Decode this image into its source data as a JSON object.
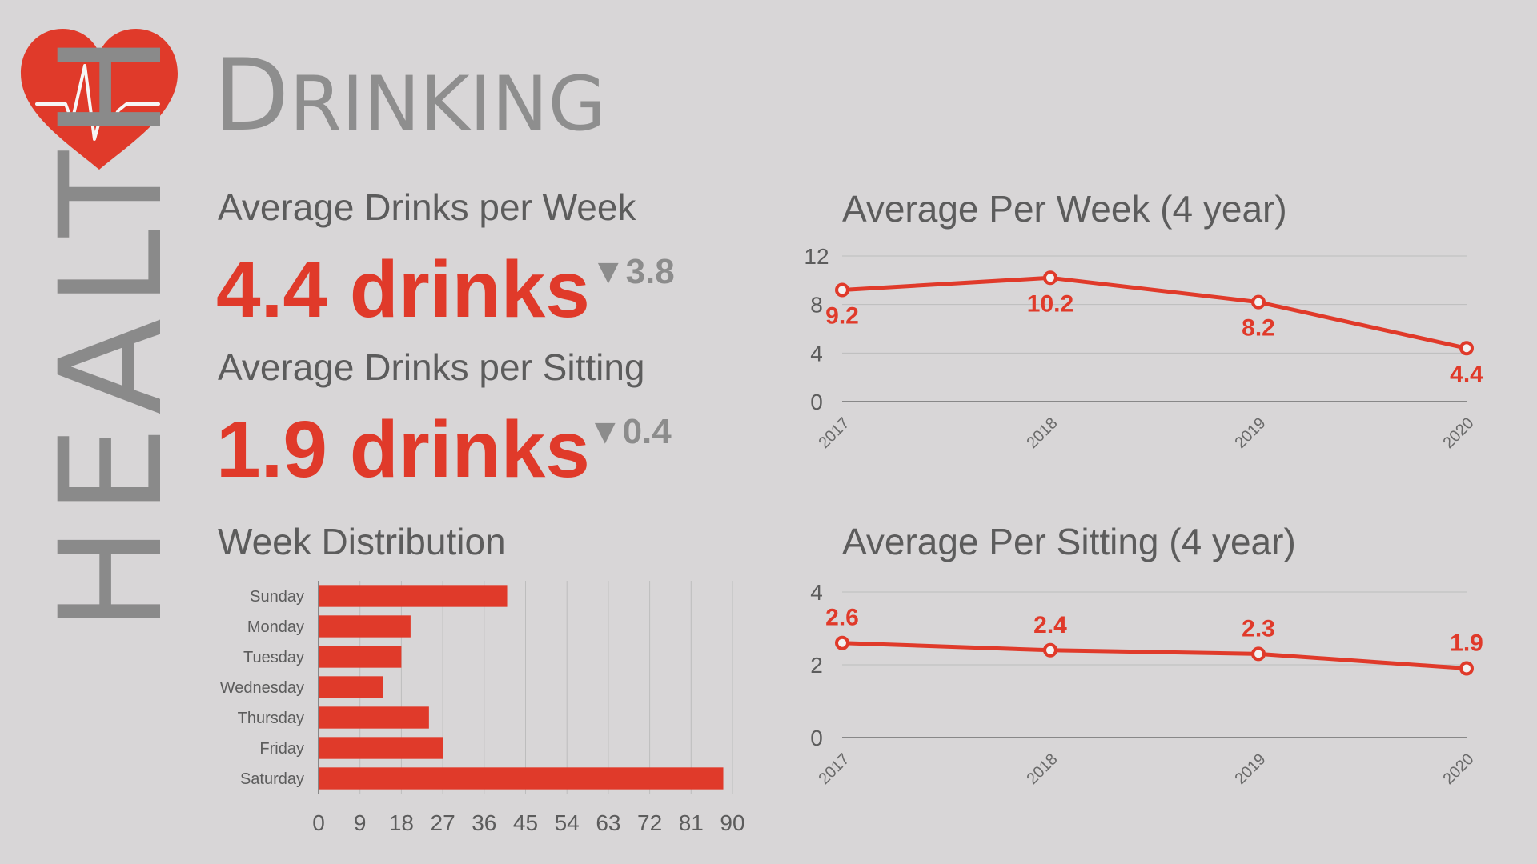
{
  "header": {
    "section_label": "Health",
    "section_label_display": "HEALTH",
    "title_initial": "D",
    "title_rest": "RINKING"
  },
  "colors": {
    "accent": "#e03a2a",
    "muted": "#8c8c8c",
    "background": "#d8d6d7"
  },
  "icons": {
    "heart": "heart-pulse-icon",
    "delta": "triangle-down-icon"
  },
  "metrics": {
    "per_week": {
      "label": "Average Drinks per Week",
      "value": "4.4 drinks",
      "delta_symbol": "▼",
      "delta": "3.8"
    },
    "per_sitting": {
      "label": "Average Drinks per Sitting",
      "value": "1.9 drinks",
      "delta_symbol": "▼",
      "delta": "0.4"
    }
  },
  "chart_data": [
    {
      "id": "week_distribution",
      "type": "bar",
      "orientation": "horizontal",
      "title": "Week Distribution",
      "categories": [
        "Sunday",
        "Monday",
        "Tuesday",
        "Wednesday",
        "Thursday",
        "Friday",
        "Saturday"
      ],
      "values": [
        41,
        20,
        18,
        14,
        24,
        27,
        88
      ],
      "xlim": [
        0,
        90
      ],
      "xticks": [
        0,
        9,
        18,
        27,
        36,
        45,
        54,
        63,
        72,
        81,
        90
      ],
      "grid": true
    },
    {
      "id": "avg_per_week",
      "type": "line",
      "title": "Average Per Week (4 year)",
      "x": [
        "2017",
        "2018",
        "2019",
        "2020"
      ],
      "values": [
        9.2,
        10.2,
        8.2,
        4.4
      ],
      "data_labels": [
        "9.2",
        "10.2",
        "8.2",
        "4.4"
      ],
      "ylim": [
        0,
        12
      ],
      "yticks": [
        0,
        4,
        8,
        12
      ],
      "grid": true
    },
    {
      "id": "avg_per_sitting",
      "type": "line",
      "title": "Average Per Sitting (4 year)",
      "x": [
        "2017",
        "2018",
        "2019",
        "2020"
      ],
      "values": [
        2.6,
        2.4,
        2.3,
        1.9
      ],
      "data_labels": [
        "2.6",
        "2.4",
        "2.3",
        "1.9"
      ],
      "ylim": [
        0,
        4
      ],
      "yticks": [
        0,
        2,
        4
      ],
      "grid": true
    }
  ]
}
